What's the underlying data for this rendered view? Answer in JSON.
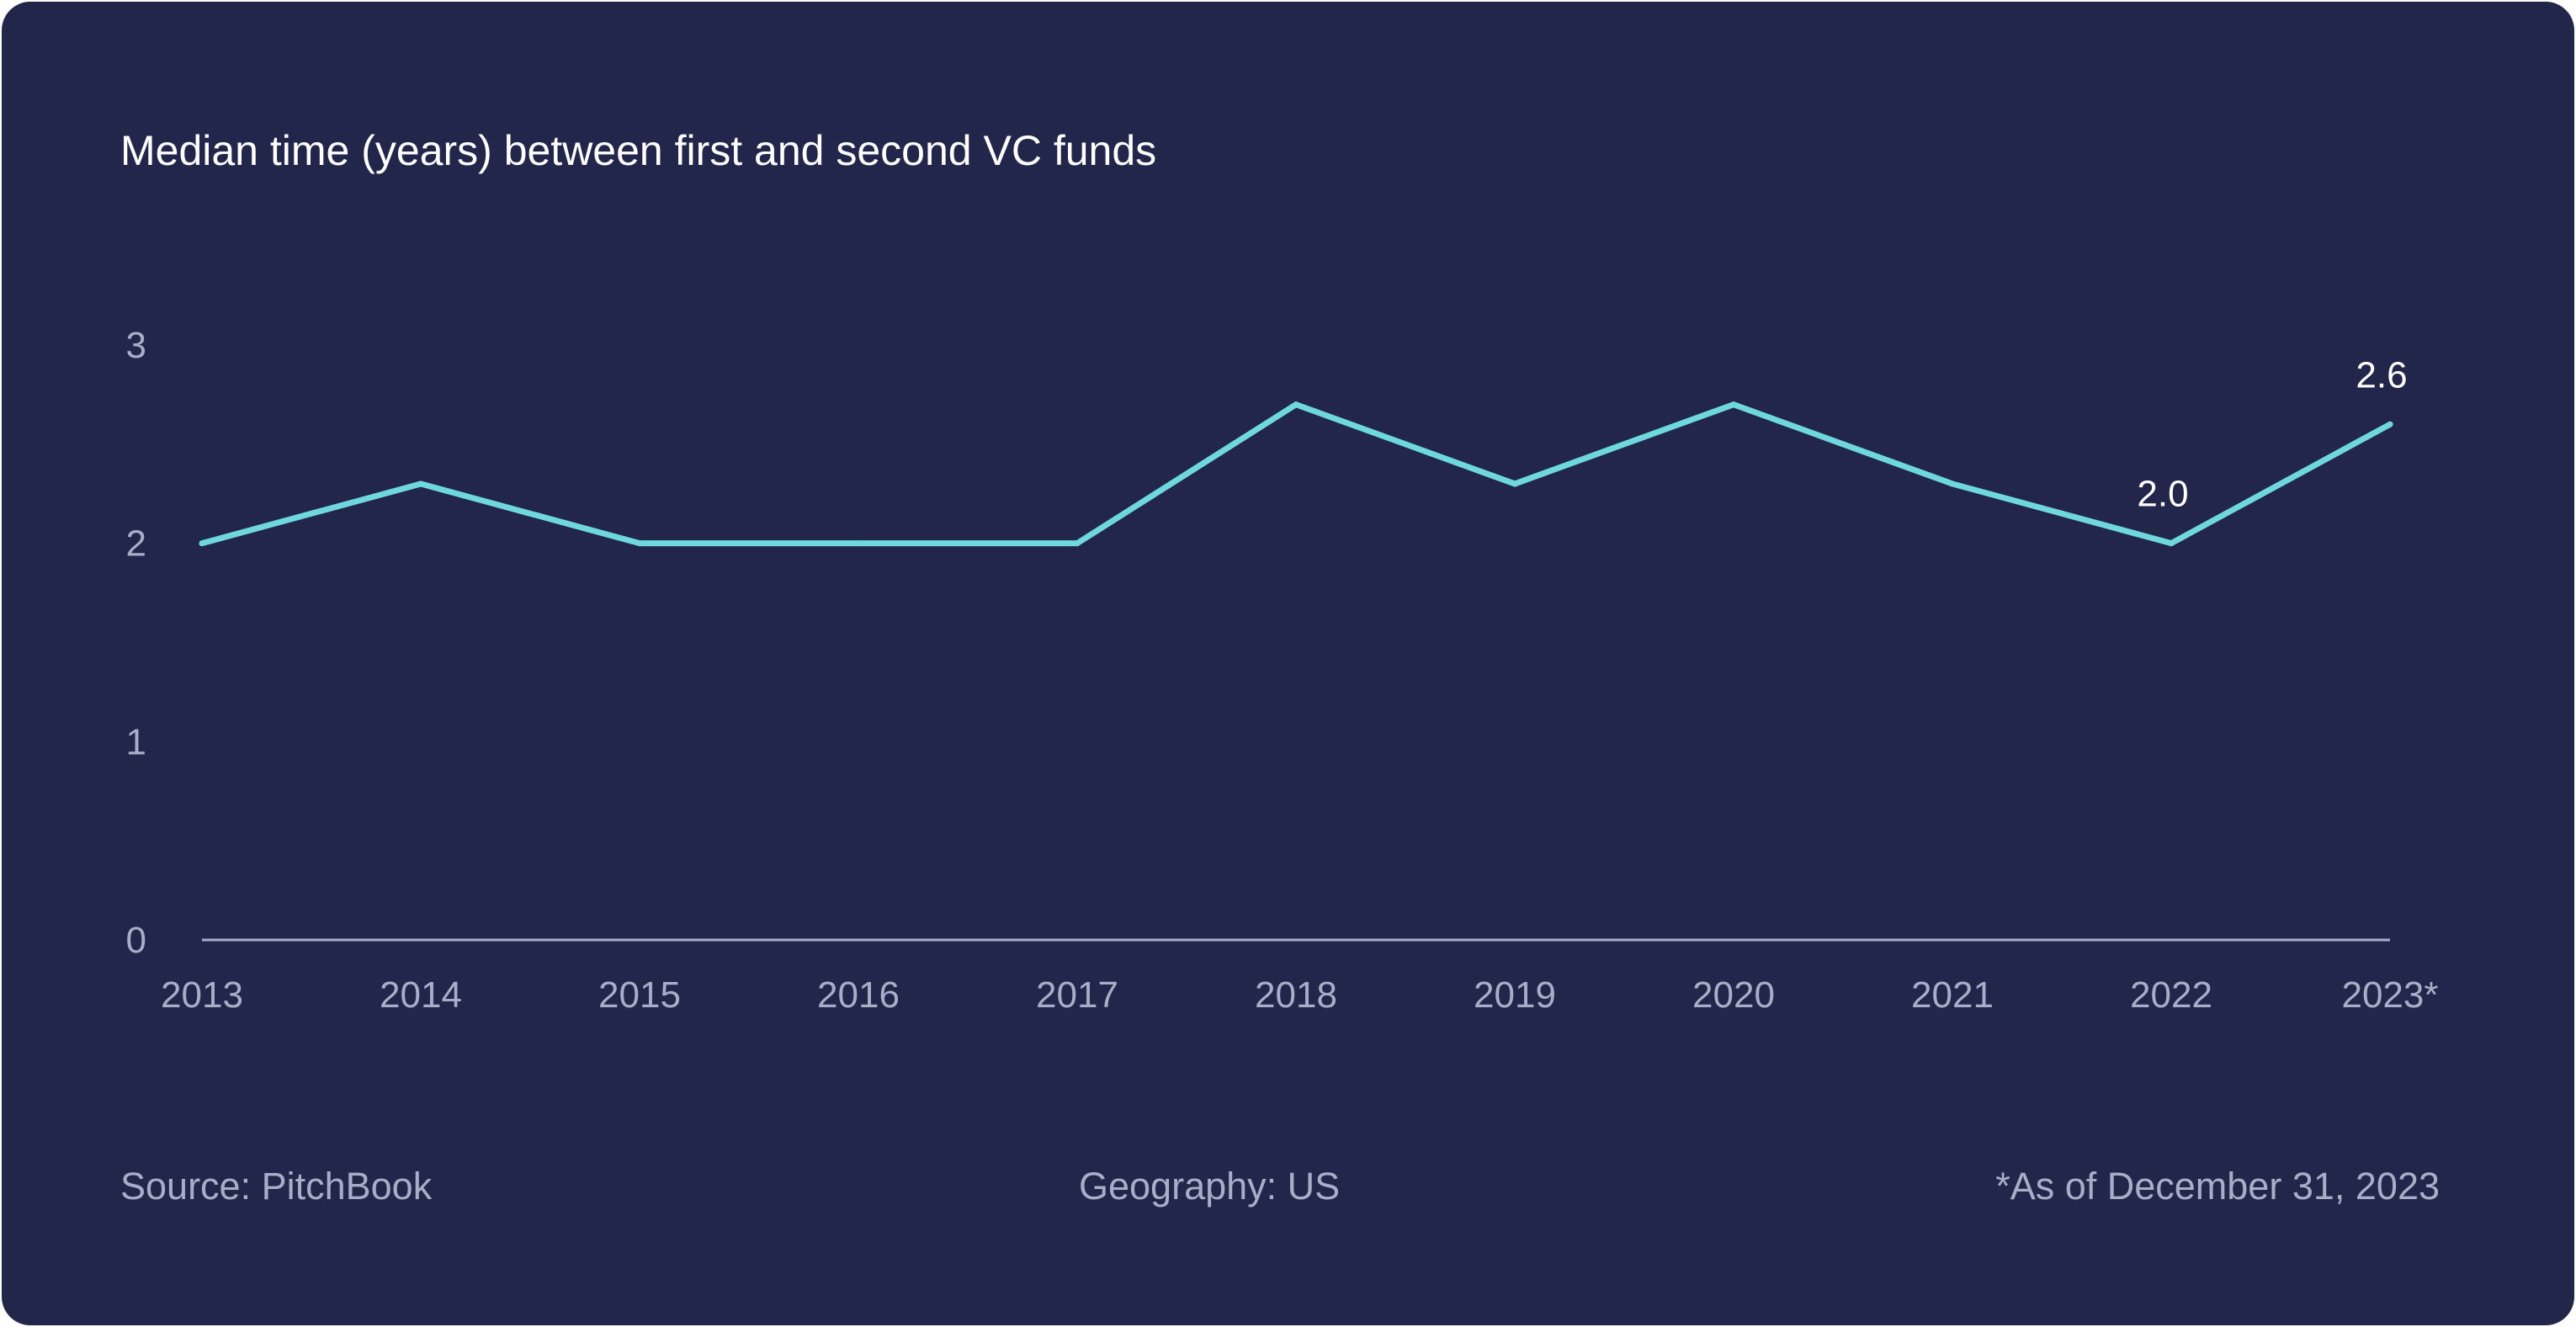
{
  "chart_data": {
    "type": "line",
    "title": "Median time (years) between first and second VC funds",
    "categories": [
      "2013",
      "2014",
      "2015",
      "2016",
      "2017",
      "2018",
      "2019",
      "2020",
      "2021",
      "2022",
      "2023*"
    ],
    "series": [
      {
        "values": [
          2.0,
          2.3,
          2.0,
          2.0,
          2.0,
          2.7,
          2.3,
          2.7,
          2.3,
          2.0,
          2.6
        ],
        "color": "#6fd8de"
      }
    ],
    "data_labels": [
      {
        "index": 9,
        "text": "2.0"
      },
      {
        "index": 10,
        "text": "2.6"
      }
    ],
    "yticks": [
      "0",
      "1",
      "2",
      "3"
    ],
    "ylim": [
      0,
      3
    ],
    "xlabel": "",
    "ylabel": "",
    "grid": false,
    "legend": "none"
  },
  "footer": {
    "source": "Source: PitchBook",
    "geography": "Geography: US",
    "note": "*As of December 31, 2023"
  },
  "colors": {
    "background": "#22264a",
    "line": "#6fd8de",
    "axis": "#a9aec8",
    "text": "#ffffff"
  }
}
